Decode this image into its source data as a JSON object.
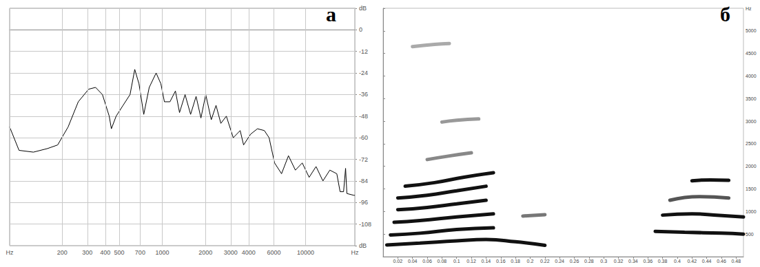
{
  "chart_data": [
    {
      "type": "line",
      "title": "а",
      "color": "#000000",
      "log": "x",
      "grid": true,
      "xlim": [
        86,
        22050
      ],
      "xticks": [
        {
          "value": 86,
          "label": "Hz"
        },
        200,
        300,
        400,
        500,
        700,
        1000,
        2000,
        3000,
        4000,
        6000,
        10000,
        {
          "value": 22050,
          "label": "Hz"
        }
      ],
      "ylim": [
        -120,
        12
      ],
      "yticks": [
        {
          "value": -120,
          "label": "dB"
        },
        -108,
        -96,
        -84,
        -72,
        -60,
        -48,
        -36,
        -24,
        -12,
        0,
        {
          "value": 12,
          "label": "dB"
        }
      ],
      "x": [
        86,
        100,
        126,
        158,
        186,
        220,
        259,
        306,
        342,
        382,
        426,
        441,
        476,
        532,
        595,
        642,
        687,
        742,
        810,
        905,
        977,
        1034,
        1130,
        1234,
        1318,
        1441,
        1575,
        1720,
        1859,
        2009,
        2195,
        2370,
        2560,
        2797,
        3125,
        3493,
        3690,
        4130,
        4611,
        5150,
        5560,
        6070,
        6790,
        7590,
        8480,
        9470,
        10580,
        11820,
        13200,
        14750,
        16500,
        17400,
        18400,
        19000,
        19400,
        21700,
        22050
      ],
      "values": [
        -54,
        -67,
        -68,
        -66,
        -64,
        -54,
        -40,
        -33,
        -32,
        -36,
        -48,
        -55,
        -48,
        -42,
        -36,
        -22,
        -30,
        -47,
        -32,
        -24,
        -30,
        -40,
        -40,
        -34,
        -46,
        -36,
        -47,
        -37,
        -49,
        -36,
        -50,
        -42,
        -52,
        -48,
        -60,
        -56,
        -64,
        -58,
        -55,
        -56,
        -60,
        -74,
        -80,
        -70,
        -78,
        -74,
        -82,
        -76,
        -84,
        -78,
        -80,
        -90,
        -90,
        -77,
        -91,
        -92,
        -92
      ]
    },
    {
      "type": "line",
      "title": "б",
      "grid": false,
      "xlim": [
        0,
        0.49
      ],
      "xticks": [
        0.02,
        0.04,
        0.06,
        0.08,
        0.1,
        0.12,
        0.14,
        0.16,
        0.18,
        0.2,
        0.22,
        0.24,
        0.26,
        0.28,
        0.3,
        0.32,
        0.34,
        0.36,
        0.38,
        0.4,
        0.42,
        0.44,
        0.46,
        0.48
      ],
      "ylim": [
        0,
        5500
      ],
      "yticks": [
        500,
        1000,
        1500,
        2000,
        2500,
        3000,
        3500,
        4000,
        4500,
        5000,
        {
          "value": 5500,
          "label": "Hz"
        }
      ],
      "series": [
        {
          "color": "#111111",
          "x": [
            0.005,
            0.05,
            0.1,
            0.14,
            0.18,
            0.22
          ],
          "values": [
            260,
            300,
            350,
            380,
            330,
            250
          ]
        },
        {
          "color": "#111111",
          "x": [
            0.01,
            0.05,
            0.1,
            0.15
          ],
          "values": [
            480,
            520,
            600,
            640
          ]
        },
        {
          "color": "#111111",
          "x": [
            0.015,
            0.05,
            0.1,
            0.15
          ],
          "values": [
            760,
            800,
            880,
            950
          ]
        },
        {
          "color": "#111111",
          "x": [
            0.02,
            0.06,
            0.1,
            0.14
          ],
          "values": [
            1040,
            1090,
            1170,
            1250
          ]
        },
        {
          "color": "#111111",
          "x": [
            0.02,
            0.06,
            0.1,
            0.14
          ],
          "values": [
            1300,
            1360,
            1460,
            1560
          ]
        },
        {
          "color": "#111111",
          "x": [
            0.03,
            0.07,
            0.11,
            0.15
          ],
          "values": [
            1560,
            1640,
            1760,
            1860
          ]
        },
        {
          "color": "#888888",
          "x": [
            0.06,
            0.09,
            0.12
          ],
          "values": [
            2150,
            2230,
            2300
          ]
        },
        {
          "color": "#999999",
          "x": [
            0.08,
            0.1,
            0.13
          ],
          "values": [
            2980,
            3020,
            3050
          ]
        },
        {
          "color": "#aaaaaa",
          "x": [
            0.04,
            0.07,
            0.09
          ],
          "values": [
            4650,
            4700,
            4720
          ]
        },
        {
          "color": "#777777",
          "x": [
            0.19,
            0.22
          ],
          "values": [
            900,
            930
          ]
        },
        {
          "color": "#111111",
          "x": [
            0.37,
            0.41,
            0.46,
            0.49
          ],
          "values": [
            560,
            540,
            520,
            500
          ]
        },
        {
          "color": "#111111",
          "x": [
            0.38,
            0.42,
            0.45,
            0.49
          ],
          "values": [
            920,
            950,
            920,
            880
          ]
        },
        {
          "color": "#555555",
          "x": [
            0.39,
            0.43,
            0.47
          ],
          "values": [
            1250,
            1330,
            1300
          ]
        },
        {
          "color": "#111111",
          "x": [
            0.42,
            0.445,
            0.47
          ],
          "values": [
            1680,
            1700,
            1690
          ]
        }
      ]
    }
  ]
}
